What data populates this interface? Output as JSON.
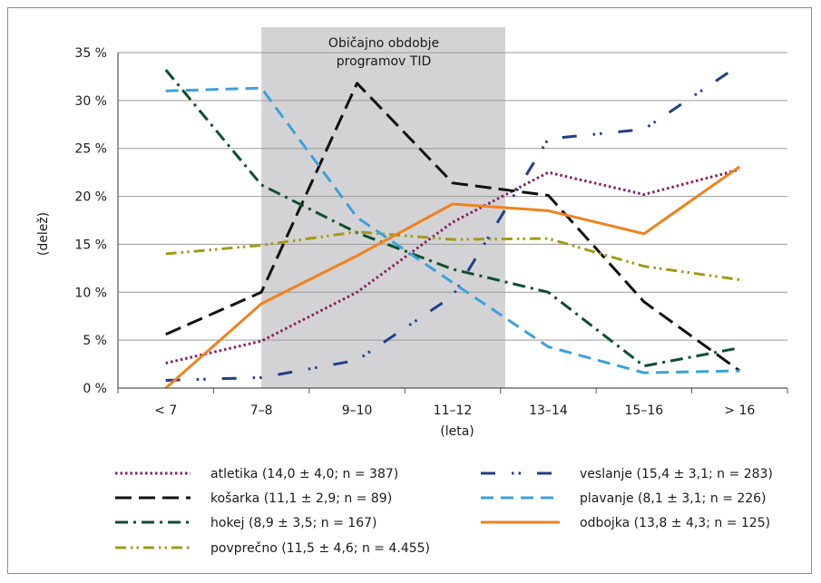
{
  "chart_data": {
    "type": "line",
    "ylabel": "(delež)",
    "xlabel": "(leta)",
    "ylim": [
      0,
      35
    ],
    "yticks": [
      "0 %",
      "5 %",
      "10 %",
      "15 %",
      "20 %",
      "25 %",
      "30 %",
      "35 %"
    ],
    "ytick_values": [
      0,
      5,
      10,
      15,
      20,
      25,
      30,
      35
    ],
    "categories": [
      "< 7",
      "7–8",
      "9–10",
      "11–12",
      "13–14",
      "15–16",
      "> 16"
    ],
    "grid": true,
    "shaded_region": {
      "label_line1": "Običajno obdobje",
      "label_line2": "programov TID",
      "from_category_index": 1,
      "to_category_index": 3.55,
      "color": "#d3d3d5"
    },
    "series": [
      {
        "name": "atletika (14,0 ± 4,0; n = 387)",
        "color": "#8a1d5e",
        "dash": "dot",
        "values": [
          2.6,
          4.9,
          10.0,
          17.3,
          22.5,
          20.2,
          22.8
        ]
      },
      {
        "name": "košarka (11,1 ± 2,9; n = 89)",
        "color": "#111111",
        "dash": "longdash",
        "values": [
          5.6,
          10.0,
          31.8,
          21.4,
          20.1,
          9.0,
          1.8
        ]
      },
      {
        "name": "hokej (8,9 ± 3,5; n = 167)",
        "color": "#0e4f2c",
        "dash": "dashdot",
        "values": [
          33.2,
          21.2,
          16.2,
          12.4,
          10.0,
          2.3,
          4.2
        ]
      },
      {
        "name": "povprečno (11,5 ± 4,6; n = 4.455)",
        "color": "#a39a16",
        "dash": "dashdotdot",
        "values": [
          14.0,
          14.9,
          16.3,
          15.5,
          15.6,
          12.7,
          11.3
        ]
      },
      {
        "name": "veslanje (15,4 ± 3,1; n = 283)",
        "color": "#223e8c",
        "dash": "dashdotdot_long",
        "values": [
          0.8,
          1.1,
          2.9,
          9.6,
          26.0,
          27.0,
          33.7
        ]
      },
      {
        "name": "plavanje (8,1 ± 3,1; n = 226)",
        "color": "#3aa1dc",
        "dash": "dash",
        "values": [
          31.0,
          31.3,
          17.8,
          11.0,
          4.3,
          1.6,
          1.8
        ]
      },
      {
        "name": "odbojka (13,8 ± 4,3; n = 125)",
        "color": "#f0821e",
        "dash": "solid",
        "values": [
          0.0,
          8.8,
          13.8,
          19.2,
          18.5,
          16.1,
          23.1
        ]
      }
    ],
    "legend_position": "bottom"
  }
}
